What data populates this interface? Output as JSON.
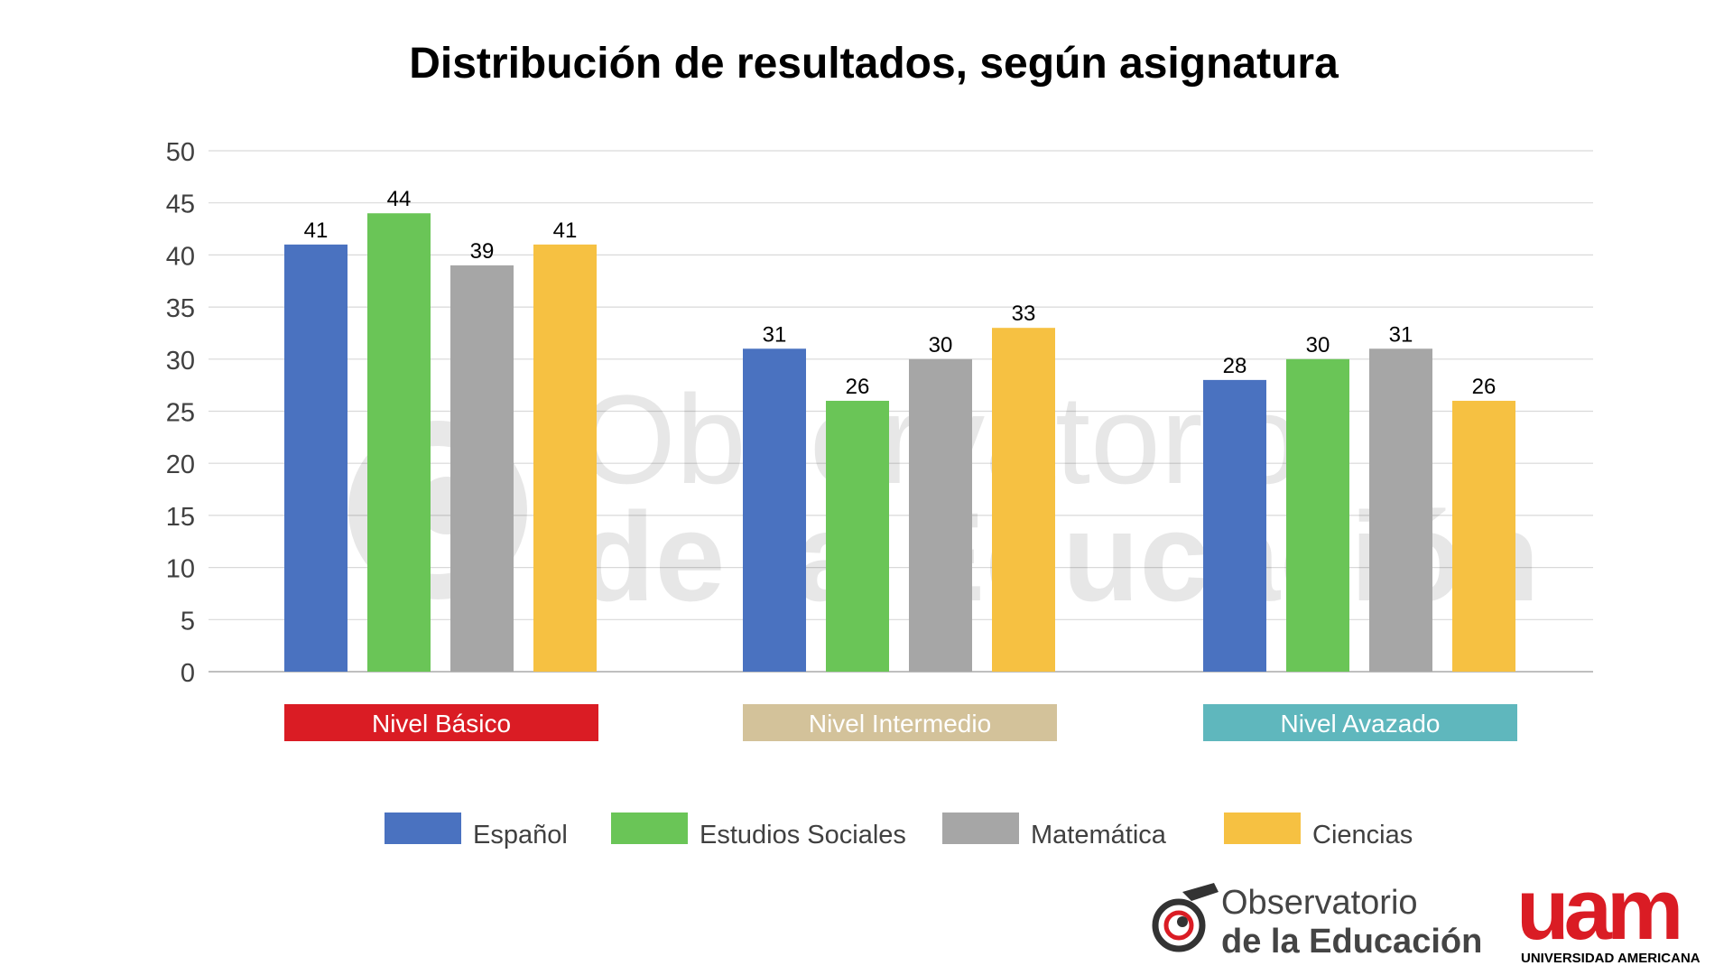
{
  "chart_data": {
    "type": "bar",
    "title": "Distribución de resultados, según asignatura",
    "categories": [
      "Nivel Básico",
      "Nivel Intermedio",
      "Nivel Avazado"
    ],
    "category_colors": [
      "#da1c24",
      "#d3c29a",
      "#5fb7bd"
    ],
    "series": [
      {
        "name": "Español",
        "color": "#4a72c0",
        "values": [
          41,
          31,
          28
        ]
      },
      {
        "name": "Estudios Sociales",
        "color": "#6ac557",
        "values": [
          44,
          26,
          30
        ]
      },
      {
        "name": "Matemática",
        "color": "#a6a6a6",
        "values": [
          39,
          30,
          31
        ]
      },
      {
        "name": "Ciencias",
        "color": "#f6c142",
        "values": [
          41,
          33,
          26
        ]
      }
    ],
    "ylim": [
      0,
      50
    ],
    "yticks": [
      0,
      5,
      10,
      15,
      20,
      25,
      30,
      35,
      40,
      45,
      50
    ],
    "grid": true,
    "legend": "bottom",
    "xlabel": "",
    "ylabel": ""
  },
  "watermark": {
    "line1": "Observatorio",
    "line2": "de la Educación"
  },
  "logos": {
    "observatorio": {
      "line1": "Observatorio",
      "line2": "de la Educación"
    },
    "uam": {
      "mark": "uam",
      "caption": "UNIVERSIDAD AMERICANA",
      "color": "#da1c24"
    }
  }
}
